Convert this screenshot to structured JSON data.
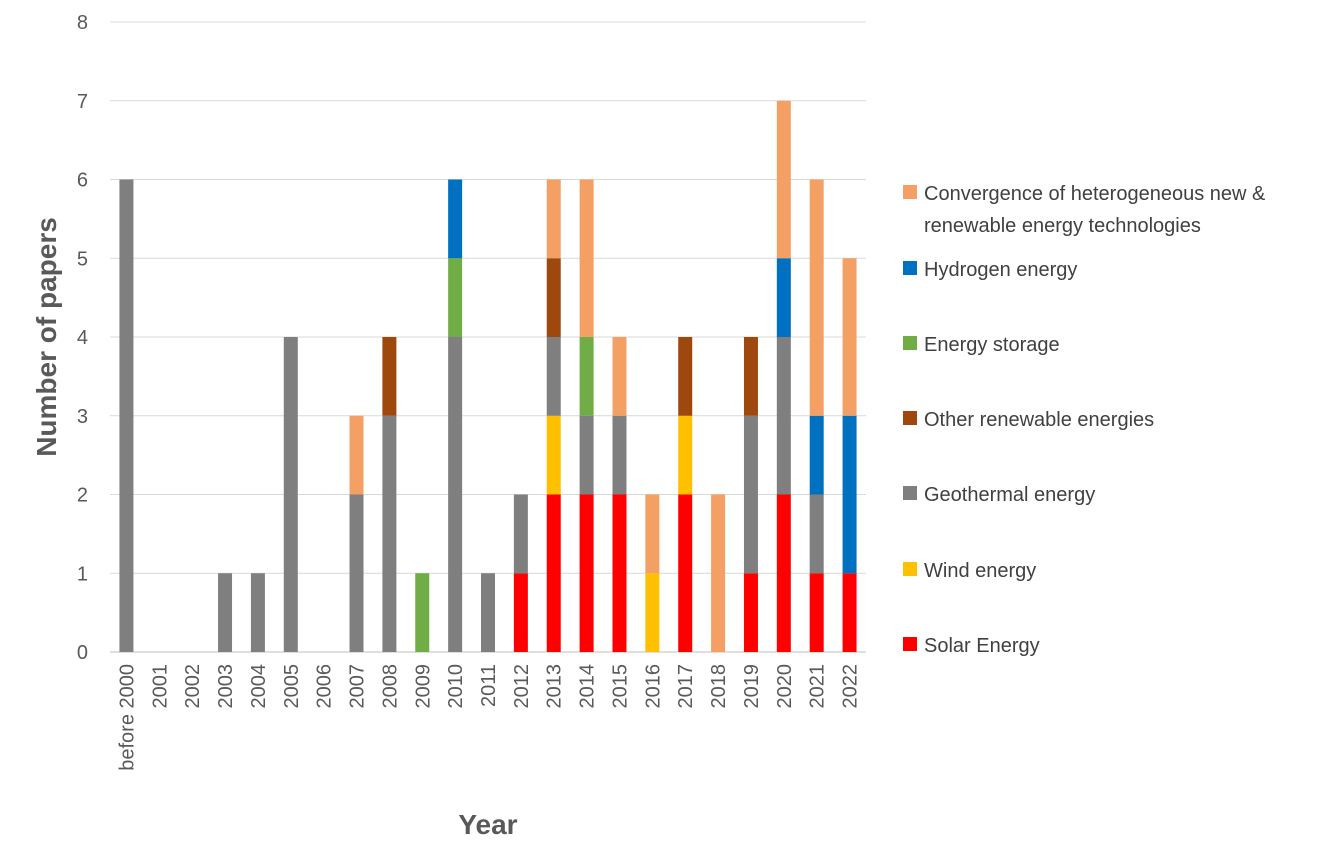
{
  "chart_data": {
    "type": "bar",
    "stacked": true,
    "title": "",
    "xlabel": "Year",
    "ylabel": "Number of papers",
    "ylim": [
      0,
      8
    ],
    "yticks": [
      0,
      1,
      2,
      3,
      4,
      5,
      6,
      7,
      8
    ],
    "grid": true,
    "legend_position": "right",
    "categories": [
      "before 2000",
      "2001",
      "2002",
      "2003",
      "2004",
      "2005",
      "2006",
      "2007",
      "2008",
      "2009",
      "2010",
      "2011",
      "2012",
      "2013",
      "2014",
      "2015",
      "2016",
      "2017",
      "2018",
      "2019",
      "2020",
      "2021",
      "2022"
    ],
    "series": [
      {
        "name": "Solar Energy",
        "color": "#FF0000",
        "values": [
          0,
          0,
          0,
          0,
          0,
          0,
          0,
          0,
          0,
          0,
          0,
          0,
          1,
          2,
          2,
          2,
          0,
          2,
          0,
          1,
          2,
          1,
          1
        ]
      },
      {
        "name": "Wind energy",
        "color": "#FFC000",
        "values": [
          0,
          0,
          0,
          0,
          0,
          0,
          0,
          0,
          0,
          0,
          0,
          0,
          0,
          1,
          0,
          0,
          1,
          1,
          0,
          0,
          0,
          0,
          0
        ]
      },
      {
        "name": "Geothermal energy",
        "color": "#7F7F7F",
        "values": [
          6,
          0,
          0,
          1,
          1,
          4,
          0,
          2,
          3,
          0,
          4,
          1,
          1,
          1,
          1,
          1,
          0,
          0,
          0,
          2,
          2,
          1,
          0
        ]
      },
      {
        "name": "Other renewable energies",
        "color": "#9E480E",
        "values": [
          0,
          0,
          0,
          0,
          0,
          0,
          0,
          0,
          1,
          0,
          0,
          0,
          0,
          1,
          0,
          0,
          0,
          1,
          0,
          1,
          0,
          0,
          0
        ]
      },
      {
        "name": "Energy storage",
        "color": "#70AD47",
        "values": [
          0,
          0,
          0,
          0,
          0,
          0,
          0,
          0,
          0,
          1,
          1,
          0,
          0,
          0,
          1,
          0,
          0,
          0,
          0,
          0,
          0,
          0,
          0
        ]
      },
      {
        "name": "Hydrogen energy",
        "color": "#0070C0",
        "values": [
          0,
          0,
          0,
          0,
          0,
          0,
          0,
          0,
          0,
          0,
          1,
          0,
          0,
          0,
          0,
          0,
          0,
          0,
          0,
          0,
          1,
          1,
          2
        ]
      },
      {
        "name": "Convergence of heterogeneous new & renewable energy technologies",
        "legend_lines": [
          "Convergence of heterogeneous new &",
          "renewable energy technologies"
        ],
        "color": "#F4A064",
        "values": [
          0,
          0,
          0,
          0,
          0,
          0,
          0,
          1,
          0,
          0,
          0,
          0,
          0,
          1,
          2,
          1,
          1,
          0,
          2,
          0,
          2,
          3,
          2
        ]
      }
    ]
  }
}
